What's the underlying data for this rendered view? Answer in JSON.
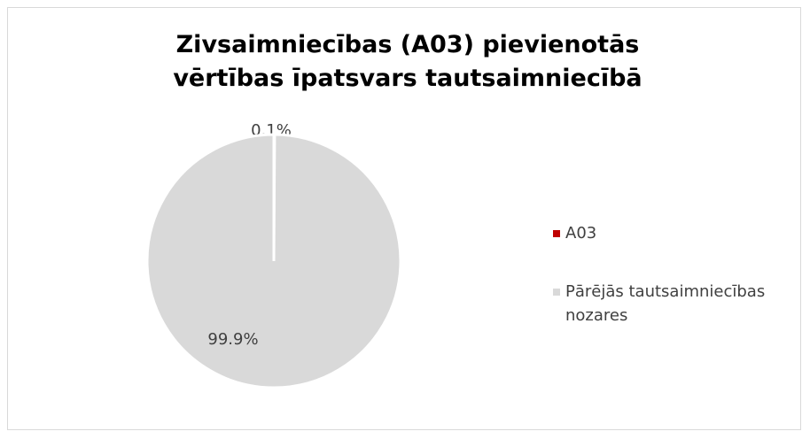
{
  "chart_data": {
    "type": "pie",
    "title": "Zivsaimniecības (A03) pievienotās vērtības īpatsvars tautsaimniecībā",
    "categories": [
      "A03",
      "Pārējās tautsaimniecības nozares"
    ],
    "values": [
      0.1,
      99.9
    ],
    "value_labels": [
      "0.1%",
      "99.9%"
    ],
    "colors": [
      "#c00000",
      "#d9d9d9"
    ],
    "legend": "right"
  }
}
